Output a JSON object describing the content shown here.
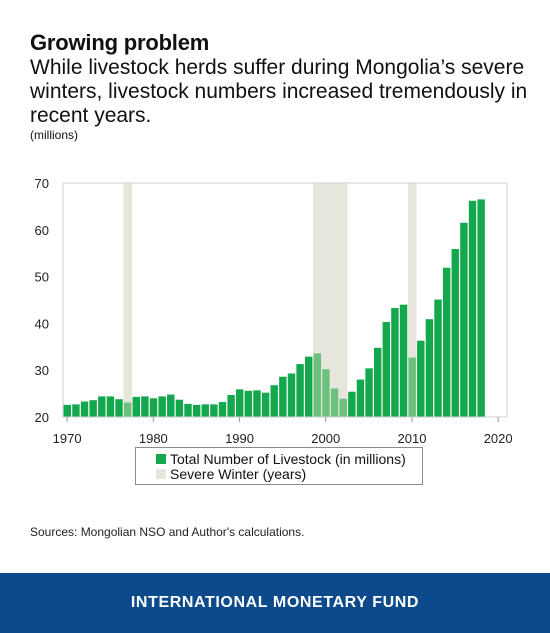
{
  "title": "Growing problem",
  "subtitle": "While livestock herds suffer during Mongolia’s severe winters, livestock numbers increased tremendously in recent years.",
  "unit_label": "(millions)",
  "legend": {
    "series_label": "Total Number of Livestock (in millions)",
    "shade_label": "Severe Winter (years)"
  },
  "source": "Sources: Mongolian NSO and Author's calculations.",
  "footer": "INTERNATIONAL MONETARY FUND",
  "colors": {
    "bar": "#13a84d",
    "bar_severe": "#6cc07e",
    "shade": "#e6e6dc",
    "footer_bg": "#0c4a8c"
  },
  "chart_data": {
    "type": "bar",
    "years": [
      1970,
      1971,
      1972,
      1973,
      1974,
      1975,
      1976,
      1977,
      1978,
      1979,
      1980,
      1981,
      1982,
      1983,
      1984,
      1985,
      1986,
      1987,
      1988,
      1989,
      1990,
      1991,
      1992,
      1993,
      1994,
      1995,
      1996,
      1997,
      1998,
      1999,
      2000,
      2001,
      2002,
      2003,
      2004,
      2005,
      2006,
      2007,
      2008,
      2009,
      2010,
      2011,
      2012,
      2013,
      2014,
      2015,
      2016,
      2017,
      2018
    ],
    "values": [
      22.6,
      22.7,
      23.3,
      23.6,
      24.4,
      24.4,
      23.8,
      23.1,
      24.3,
      24.4,
      24.0,
      24.4,
      24.8,
      23.7,
      22.8,
      22.6,
      22.7,
      22.7,
      23.2,
      24.7,
      25.9,
      25.6,
      25.7,
      25.2,
      26.8,
      28.6,
      29.3,
      31.3,
      32.9,
      33.6,
      30.2,
      26.1,
      23.9,
      25.4,
      28.0,
      30.4,
      34.8,
      40.3,
      43.3,
      44.0,
      32.7,
      36.3,
      40.9,
      45.1,
      51.9,
      55.9,
      61.5,
      66.2,
      66.5
    ],
    "severe_winter_periods": [
      [
        1977,
        1977
      ],
      [
        1999,
        2002
      ],
      [
        2010,
        2010
      ]
    ],
    "x_ticks": [
      1970,
      1980,
      1990,
      2000,
      2010,
      2020
    ],
    "y_ticks": [
      20,
      30,
      40,
      50,
      60,
      70
    ],
    "xlim": [
      1969.5,
      2021
    ],
    "ylim": [
      20,
      70
    ],
    "grid": false,
    "legend_position": "bottom"
  }
}
